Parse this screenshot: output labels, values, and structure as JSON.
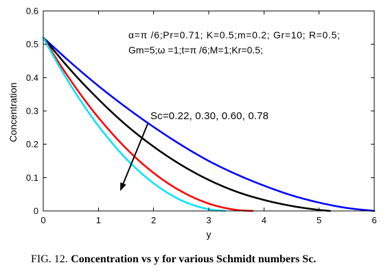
{
  "chart_data": {
    "type": "line",
    "xlabel": "y",
    "ylabel": "Concentration",
    "xlim": [
      0,
      6
    ],
    "ylim": [
      0,
      0.6
    ],
    "xticks": [
      0,
      1,
      2,
      3,
      4,
      5,
      6
    ],
    "yticks": [
      0,
      0.1,
      0.2,
      0.3,
      0.4,
      0.5,
      0.6
    ],
    "grid": false,
    "series": [
      {
        "color": "#0000ff",
        "x": [
          0,
          0.5,
          1,
          1.5,
          2,
          2.5,
          3,
          3.5,
          4,
          4.5,
          5,
          5.5,
          6
        ],
        "y": [
          0.52,
          0.445,
          0.375,
          0.311,
          0.252,
          0.198,
          0.15,
          0.11,
          0.076,
          0.047,
          0.025,
          0.009,
          0
        ]
      },
      {
        "color": "#000000",
        "x": [
          0,
          0.5,
          1,
          1.5,
          2,
          2.5,
          3,
          3.5,
          4,
          4.5,
          5,
          5.2
        ],
        "y": [
          0.52,
          0.422,
          0.335,
          0.258,
          0.193,
          0.138,
          0.093,
          0.058,
          0.033,
          0.015,
          0.003,
          0
        ]
      },
      {
        "color": "#ff0000",
        "x": [
          0,
          0.25,
          0.5,
          0.75,
          1,
          1.5,
          2,
          2.5,
          3,
          3.5,
          3.8
        ],
        "y": [
          0.52,
          0.453,
          0.391,
          0.333,
          0.28,
          0.188,
          0.114,
          0.059,
          0.022,
          0.003,
          0
        ]
      },
      {
        "color": "#00e5ff",
        "x": [
          0,
          0.25,
          0.5,
          0.75,
          1,
          1.5,
          2,
          2.5,
          3,
          3.3
        ],
        "y": [
          0.52,
          0.445,
          0.376,
          0.313,
          0.255,
          0.157,
          0.083,
          0.032,
          0.005,
          0
        ]
      }
    ],
    "annotations": [
      "α=π /6;Pr=0.71; K=0.5;m=0.2; Gr=10; R=0.5;",
      "Gm=5;ω =1;t=π /6;M=1;Kr=0.5;",
      "Sc=0.22, 0.30, 0.60, 0.78"
    ]
  },
  "caption": {
    "label": "FIG. 12.",
    "text": "Concentration vs y for various Schmidt numbers Sc."
  }
}
